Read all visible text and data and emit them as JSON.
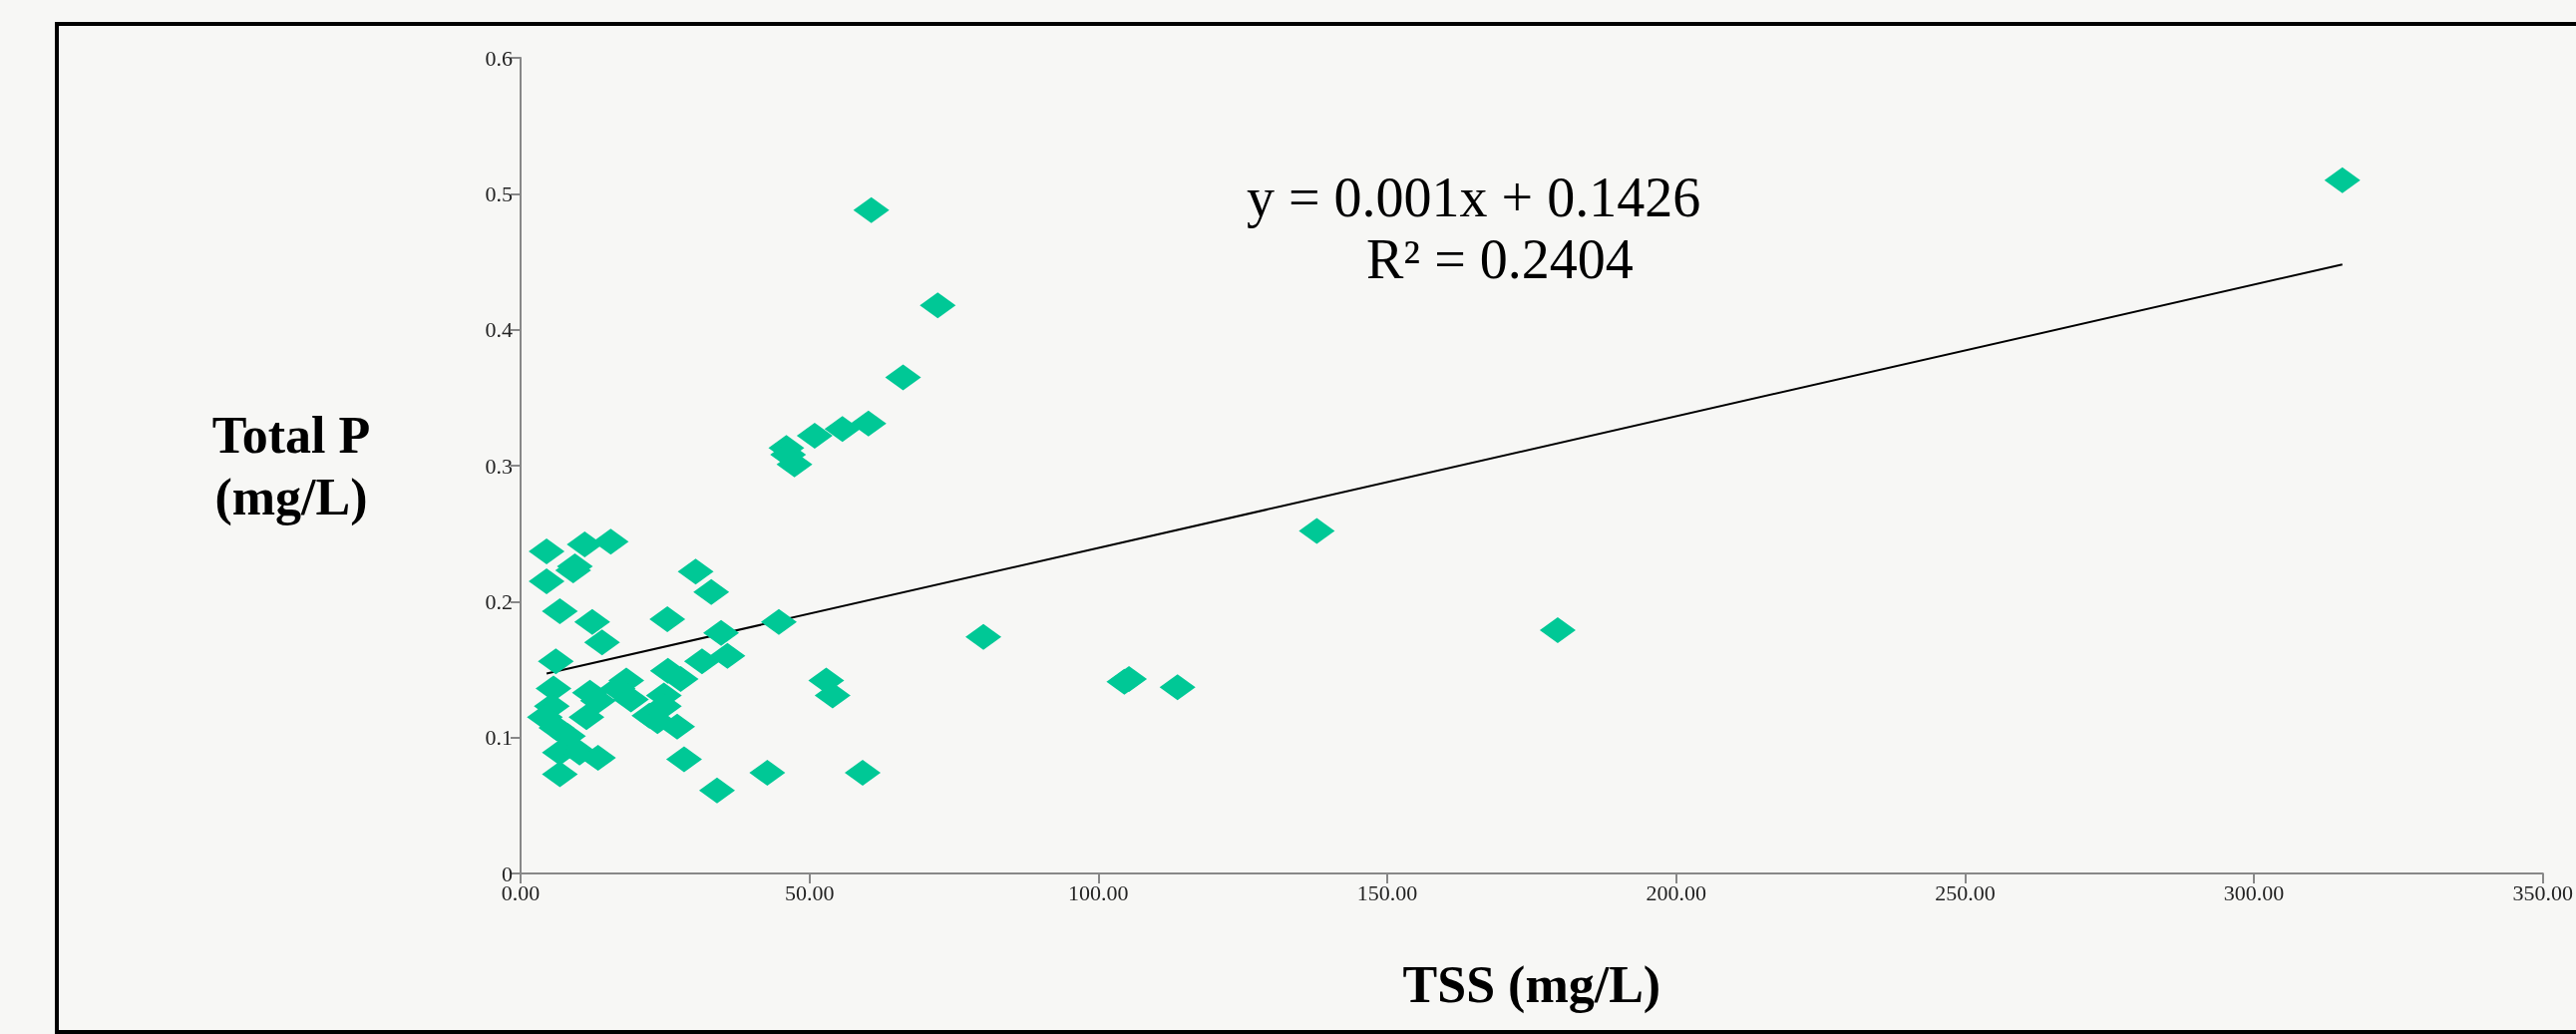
{
  "chart_data": {
    "type": "scatter",
    "xlabel": "TSS (mg/L)",
    "ylabel": "Total P\n(mg/L)",
    "marker": "diamond",
    "xlim": [
      0,
      350
    ],
    "xticks": [
      {
        "value": 0,
        "label": "0.00"
      },
      {
        "value": 50,
        "label": "50.00"
      },
      {
        "value": 100,
        "label": "100.00"
      },
      {
        "value": 150,
        "label": "150.00"
      },
      {
        "value": 200,
        "label": "200.00"
      },
      {
        "value": 250,
        "label": "250.00"
      },
      {
        "value": 300,
        "label": "300.00"
      },
      {
        "value": 350,
        "label": "350.00"
      }
    ],
    "ylim": [
      0,
      0.6
    ],
    "yticks": [
      0,
      0.1,
      0.2,
      0.3,
      0.4,
      0.5,
      0.6
    ],
    "annotations": [
      "y = 0.001x + 0.1426",
      "R² = 0.2404"
    ],
    "series": [
      {
        "color": "#00c896",
        "x": [
          60.7,
          72.2,
          66.2,
          50.9,
          55.7,
          60.2,
          46,
          46.3,
          47.4,
          4.5,
          11.1,
          15.6,
          9.4,
          9.1,
          4.5,
          30.3,
          33,
          6.8,
          12.4,
          14.1,
          25.4,
          44.7,
          34.7,
          80.1,
          6.1,
          31.4,
          35.8,
          25.5,
          27.7,
          52.9,
          54,
          5.7,
          12,
          13.4,
          18.3,
          16.8,
          19.1,
          24.8,
          24.8,
          5.4,
          4.2,
          11.4,
          22.3,
          23.7,
          27.1,
          6.2,
          8.2,
          6.8,
          10.2,
          13.4,
          28.3,
          6.8,
          42.7,
          59.2,
          34,
          315.3,
          137.8,
          105.3,
          104.5,
          113.7,
          179.5
        ],
        "values": [
          0.488,
          0.418,
          0.365,
          0.322,
          0.327,
          0.331,
          0.313,
          0.308,
          0.301,
          0.237,
          0.242,
          0.244,
          0.226,
          0.223,
          0.215,
          0.222,
          0.207,
          0.193,
          0.185,
          0.17,
          0.187,
          0.185,
          0.177,
          0.174,
          0.156,
          0.156,
          0.16,
          0.149,
          0.143,
          0.142,
          0.131,
          0.136,
          0.133,
          0.127,
          0.142,
          0.136,
          0.128,
          0.131,
          0.123,
          0.123,
          0.115,
          0.115,
          0.116,
          0.112,
          0.108,
          0.107,
          0.101,
          0.089,
          0.089,
          0.085,
          0.084,
          0.073,
          0.074,
          0.074,
          0.061,
          0.51,
          0.252,
          0.143,
          0.141,
          0.137,
          0.179
        ]
      },
      {
        "type": "line",
        "color": "#000000",
        "marker": "none",
        "line_style": "solid",
        "x": [
          4.5,
          315.3
        ],
        "values": [
          0.147,
          0.448
        ]
      }
    ]
  }
}
